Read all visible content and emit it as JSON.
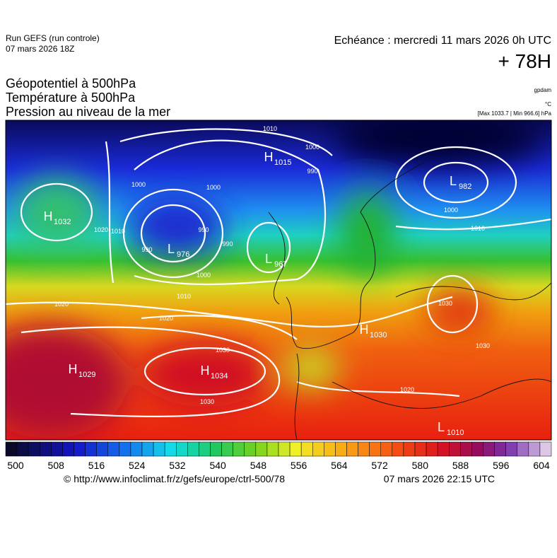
{
  "header": {
    "run": "Run GEFS (run controle)",
    "run_date": "07 mars 2026 18Z",
    "echeance": "Echéance : mercredi 11 mars 2026 0h UTC",
    "lead": "+ 78H",
    "titles": [
      "Géopotentiel à 500hPa",
      "Température à 500hPa",
      "Pression au niveau de la mer"
    ],
    "units": [
      "gpdam",
      "°C",
      "[Max 1033.7 | Min 966.6] hPa"
    ]
  },
  "centers": [
    {
      "type": "H",
      "value": "1015"
    },
    {
      "type": "L",
      "value": "982"
    },
    {
      "type": "H",
      "value": "1032"
    },
    {
      "type": "L",
      "value": "976"
    },
    {
      "type": "L",
      "value": "967"
    },
    {
      "type": "H",
      "value": "1029"
    },
    {
      "type": "H",
      "value": "1034"
    },
    {
      "type": "H",
      "value": "1030"
    },
    {
      "type": "L",
      "value": "1010"
    }
  ],
  "isobar_labels": [
    "1010",
    "1000",
    "990",
    "1000",
    "990",
    "990",
    "1000",
    "1010",
    "1020",
    "1020",
    "1030",
    "1030",
    "1020",
    "1030",
    "1030",
    "1000",
    "1010",
    "1020",
    "1010",
    "990",
    "1000"
  ],
  "colorbar_ticks": [
    "500",
    "508",
    "516",
    "524",
    "532",
    "540",
    "548",
    "556",
    "564",
    "572",
    "580",
    "588",
    "596",
    "604"
  ],
  "footer": {
    "url": "© http://www.infoclimat.fr/z/gefs/europe/ctrl-500/78",
    "time": "07 mars 2026 22:15 UTC"
  }
}
